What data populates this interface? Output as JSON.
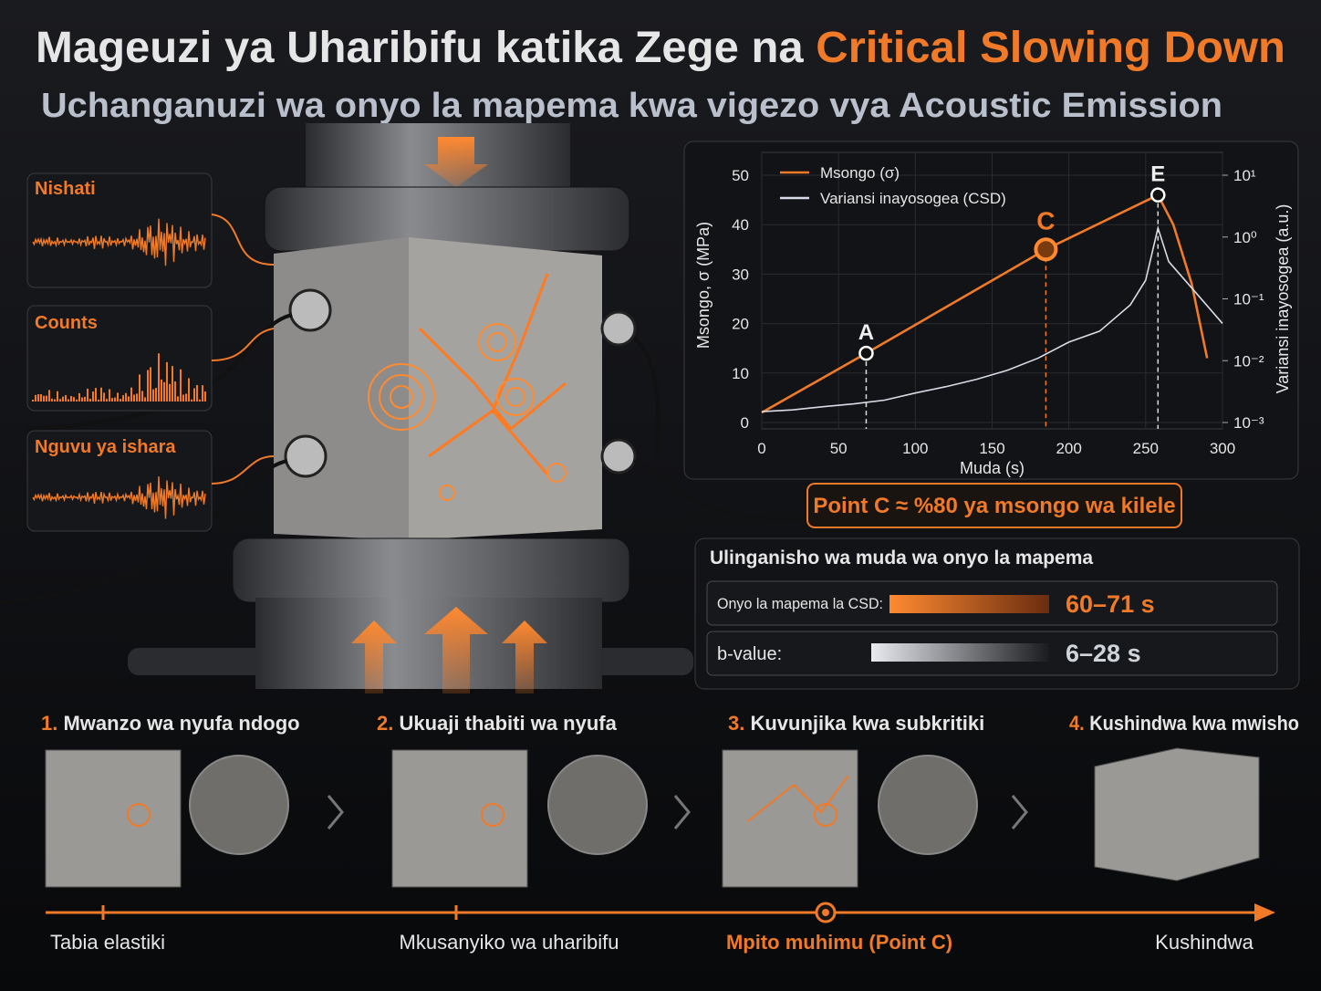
{
  "header": {
    "title_main": "Mageuzi ya Uharibifu katika Zege na",
    "title_highlight": "Critical Slowing Down",
    "subtitle": "Uchanganuzi wa onyo la mapema kwa vigezo vya Acoustic Emission"
  },
  "signals": [
    "Nishati",
    "Counts",
    "Nguvu ya ishara"
  ],
  "chart_data": {
    "type": "line",
    "xlabel": "Muda (s)",
    "ylabel": "Msongo, σ (MPa)",
    "y2label": "Variansi inayosogea (a.u.)",
    "xlim": [
      0,
      300
    ],
    "xticks": [
      0,
      50,
      100,
      150,
      200,
      250,
      300
    ],
    "ylim": [
      0,
      50
    ],
    "yticks": [
      0,
      10,
      20,
      30,
      40,
      50
    ],
    "y2lim": [
      0.001,
      10
    ],
    "y2scale": "log",
    "y2ticks": [
      {
        "value": 0.001,
        "label": "10⁻³"
      },
      {
        "value": 0.01,
        "label": "10⁻²"
      },
      {
        "value": 0.1,
        "label": "10⁻¹"
      },
      {
        "value": 1,
        "label": "10⁰"
      },
      {
        "value": 10,
        "label": "10¹"
      }
    ],
    "grid": true,
    "legend": "upper left",
    "series": [
      {
        "name": "Msongo (σ)",
        "color": "#f07a28",
        "x": [
          0,
          68,
          185,
          258,
          268,
          280,
          290
        ],
        "values": [
          2,
          14,
          35,
          46,
          40,
          28,
          13
        ]
      },
      {
        "name": "Variansi inayosogea (CSD)",
        "color": "#d8dce6",
        "axis": "y2",
        "x": [
          0,
          20,
          40,
          60,
          80,
          100,
          120,
          140,
          160,
          180,
          200,
          220,
          240,
          250,
          258,
          265,
          280,
          300
        ],
        "values": [
          0.0015,
          0.0016,
          0.0018,
          0.002,
          0.0023,
          0.003,
          0.0038,
          0.005,
          0.007,
          0.011,
          0.02,
          0.03,
          0.08,
          0.2,
          1.4,
          0.4,
          0.15,
          0.04
        ]
      }
    ],
    "annotations": [
      {
        "label": "A",
        "x": 68,
        "y": 14
      },
      {
        "label": "C",
        "x": 185,
        "y": 35
      },
      {
        "label": "E",
        "x": 258,
        "y": 46
      }
    ]
  },
  "callout": "Point C ≈ %80 ya msongo wa kilele",
  "comparison": {
    "title": "Ulinganisho wa muda wa onyo la mapema",
    "rows": [
      [
        "Onyo la mapema la CSD:",
        "60–71 s"
      ],
      [
        "b-value:",
        "6–28 s"
      ]
    ]
  },
  "stages": [
    {
      "number": "1.",
      "title": "Mwanzo wa nyufa ndogo"
    },
    {
      "number": "2.",
      "title": "Ukuaji thabiti wa nyufa"
    },
    {
      "number": "3.",
      "title": "Kuvunjika kwa subkritiki"
    },
    {
      "number": "4.",
      "title": "Kushindwa kwa mwisho"
    }
  ],
  "timeline": [
    "Tabia elastiki",
    "Mkusanyiko wa uharibifu",
    "Mpito muhimu (Point C)",
    "Kushindwa"
  ]
}
